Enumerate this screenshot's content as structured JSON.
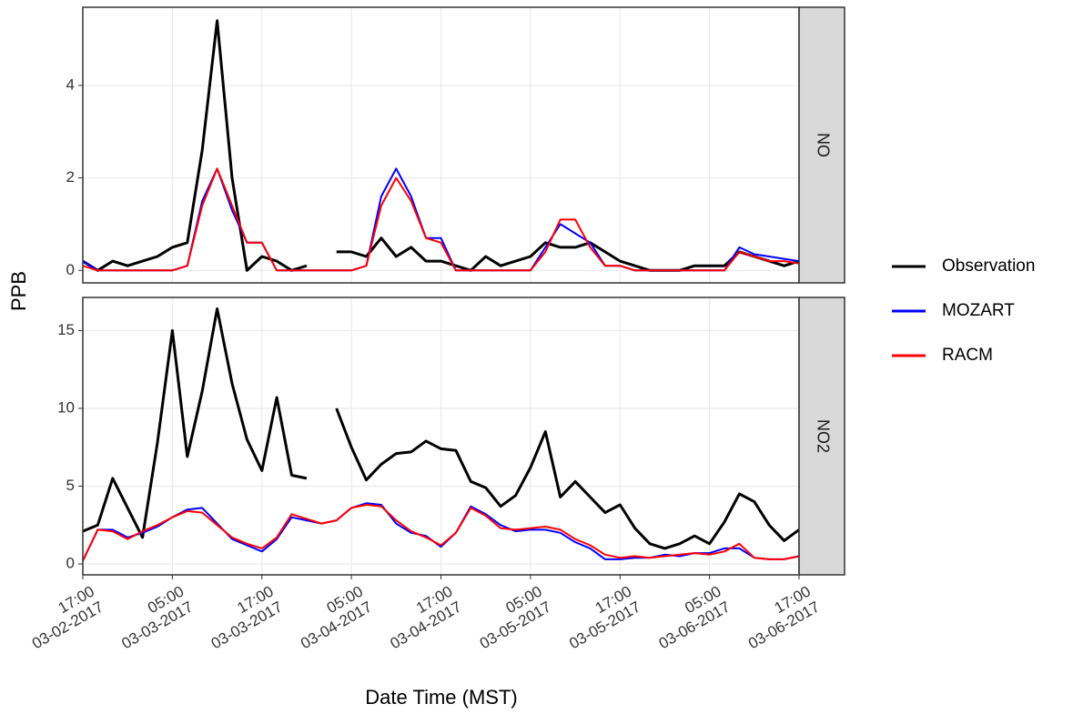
{
  "chart_data": {
    "type": "line",
    "x_label": "Date Time (MST)",
    "y_label": "PPB",
    "grid": true,
    "legend": "right",
    "x": [
      "17:00 03-02-2017",
      "19:00 03-02-2017",
      "21:00 03-02-2017",
      "23:00 03-02-2017",
      "01:00 03-03-2017",
      "03:00 03-03-2017",
      "05:00 03-03-2017",
      "07:00 03-03-2017",
      "09:00 03-03-2017",
      "11:00 03-03-2017",
      "13:00 03-03-2017",
      "15:00 03-03-2017",
      "17:00 03-03-2017",
      "19:00 03-03-2017",
      "21:00 03-03-2017",
      "23:00 03-03-2017",
      "01:00 03-04-2017",
      "03:00 03-04-2017",
      "05:00 03-04-2017",
      "07:00 03-04-2017",
      "09:00 03-04-2017",
      "11:00 03-04-2017",
      "13:00 03-04-2017",
      "15:00 03-04-2017",
      "17:00 03-04-2017",
      "19:00 03-04-2017",
      "21:00 03-04-2017",
      "23:00 03-04-2017",
      "01:00 03-05-2017",
      "03:00 03-05-2017",
      "05:00 03-05-2017",
      "07:00 03-05-2017",
      "09:00 03-05-2017",
      "11:00 03-05-2017",
      "13:00 03-05-2017",
      "15:00 03-05-2017",
      "17:00 03-05-2017",
      "19:00 03-05-2017",
      "21:00 03-05-2017",
      "23:00 03-05-2017",
      "01:00 03-06-2017",
      "03:00 03-06-2017",
      "05:00 03-06-2017",
      "07:00 03-06-2017",
      "09:00 03-06-2017",
      "11:00 03-06-2017",
      "13:00 03-06-2017",
      "15:00 03-06-2017",
      "17:00 03-06-2017"
    ],
    "xticks": [
      "17:00 03-02-2017",
      "05:00 03-03-2017",
      "17:00 03-03-2017",
      "05:00 03-04-2017",
      "17:00 03-04-2017",
      "05:00 03-05-2017",
      "17:00 03-05-2017",
      "05:00 03-06-2017",
      "17:00 03-06-2017"
    ],
    "facets": [
      {
        "label": "NO",
        "ylim": [
          -0.27,
          5.69
        ],
        "yticks": [
          0,
          2,
          4
        ],
        "series": [
          {
            "name": "Observation",
            "color": "#000000",
            "values": [
              0.2,
              0.0,
              0.2,
              0.1,
              0.2,
              0.3,
              0.5,
              0.6,
              2.6,
              5.4,
              2.0,
              0.0,
              0.3,
              0.2,
              0.0,
              0.1,
              null,
              0.4,
              0.4,
              0.3,
              0.7,
              0.3,
              0.5,
              0.2,
              0.2,
              0.1,
              0.0,
              0.3,
              0.1,
              0.2,
              0.3,
              0.6,
              0.5,
              0.5,
              0.6,
              0.4,
              0.2,
              0.1,
              0.0,
              0.0,
              0.0,
              0.1,
              0.1,
              0.1,
              0.4,
              0.3,
              0.2,
              0.1,
              0.2
            ]
          },
          {
            "name": "MOZART",
            "color": "#0000ff",
            "values": [
              0.2,
              0.0,
              0.0,
              0.0,
              0.0,
              0.0,
              0.0,
              0.1,
              1.5,
              2.2,
              1.3,
              0.6,
              0.6,
              0.0,
              0.0,
              0.0,
              0.0,
              0.0,
              0.0,
              0.1,
              1.6,
              2.2,
              1.6,
              0.7,
              0.7,
              0.0,
              0.0,
              0.0,
              0.0,
              0.0,
              0.0,
              0.5,
              1.0,
              0.8,
              0.6,
              0.1,
              0.1,
              0.0,
              0.0,
              0.0,
              0.0,
              0.0,
              0.0,
              0.0,
              0.5,
              0.35,
              0.3,
              0.25,
              0.2
            ]
          },
          {
            "name": "RACM",
            "color": "#ff0000",
            "values": [
              0.1,
              0.0,
              0.0,
              0.0,
              0.0,
              0.0,
              0.0,
              0.1,
              1.4,
              2.2,
              1.4,
              0.6,
              0.6,
              0.0,
              0.0,
              0.0,
              0.0,
              0.0,
              0.0,
              0.1,
              1.4,
              2.0,
              1.5,
              0.7,
              0.6,
              0.0,
              0.0,
              0.0,
              0.0,
              0.0,
              0.0,
              0.4,
              1.1,
              1.1,
              0.5,
              0.1,
              0.1,
              0.0,
              0.0,
              0.0,
              0.0,
              0.0,
              0.0,
              0.0,
              0.4,
              0.3,
              0.2,
              0.2,
              0.15
            ]
          }
        ]
      },
      {
        "label": "NO2",
        "ylim": [
          -0.7,
          17.13
        ],
        "yticks": [
          0,
          5,
          10,
          15
        ],
        "series": [
          {
            "name": "Observation",
            "color": "#000000",
            "values": [
              2.1,
              2.5,
              5.5,
              3.6,
              1.7,
              7.8,
              15.0,
              6.9,
              11.1,
              16.4,
              11.6,
              8.0,
              6.0,
              10.7,
              5.7,
              5.5,
              null,
              10.0,
              7.5,
              5.4,
              6.4,
              7.1,
              7.2,
              7.9,
              7.4,
              7.3,
              5.3,
              4.9,
              3.7,
              4.4,
              6.2,
              8.5,
              4.3,
              5.3,
              4.3,
              3.3,
              3.8,
              2.3,
              1.3,
              1.0,
              1.3,
              1.8,
              1.3,
              2.7,
              4.5,
              4.0,
              2.5,
              1.5,
              2.2
            ]
          },
          {
            "name": "MOZART",
            "color": "#0000ff",
            "values": [
              0.2,
              2.2,
              2.2,
              1.7,
              2.0,
              2.4,
              3.0,
              3.5,
              3.6,
              2.6,
              1.6,
              1.2,
              0.8,
              1.6,
              3.0,
              2.8,
              2.6,
              2.8,
              3.6,
              3.9,
              3.8,
              2.6,
              2.0,
              1.8,
              1.1,
              2.0,
              3.7,
              3.2,
              2.5,
              2.1,
              2.2,
              2.2,
              2.0,
              1.4,
              1.0,
              0.3,
              0.3,
              0.4,
              0.4,
              0.6,
              0.5,
              0.7,
              0.7,
              1.0,
              1.0,
              0.4,
              0.3,
              0.3,
              0.5
            ]
          },
          {
            "name": "RACM",
            "color": "#ff0000",
            "values": [
              0.2,
              2.2,
              2.1,
              1.6,
              2.1,
              2.5,
              3.0,
              3.4,
              3.3,
              2.5,
              1.7,
              1.3,
              1.0,
              1.7,
              3.2,
              2.9,
              2.6,
              2.8,
              3.6,
              3.8,
              3.7,
              2.8,
              2.1,
              1.7,
              1.2,
              2.0,
              3.6,
              3.1,
              2.3,
              2.2,
              2.3,
              2.4,
              2.2,
              1.6,
              1.2,
              0.6,
              0.4,
              0.5,
              0.4,
              0.5,
              0.6,
              0.7,
              0.6,
              0.8,
              1.3,
              0.4,
              0.3,
              0.3,
              0.5
            ]
          }
        ]
      }
    ]
  }
}
